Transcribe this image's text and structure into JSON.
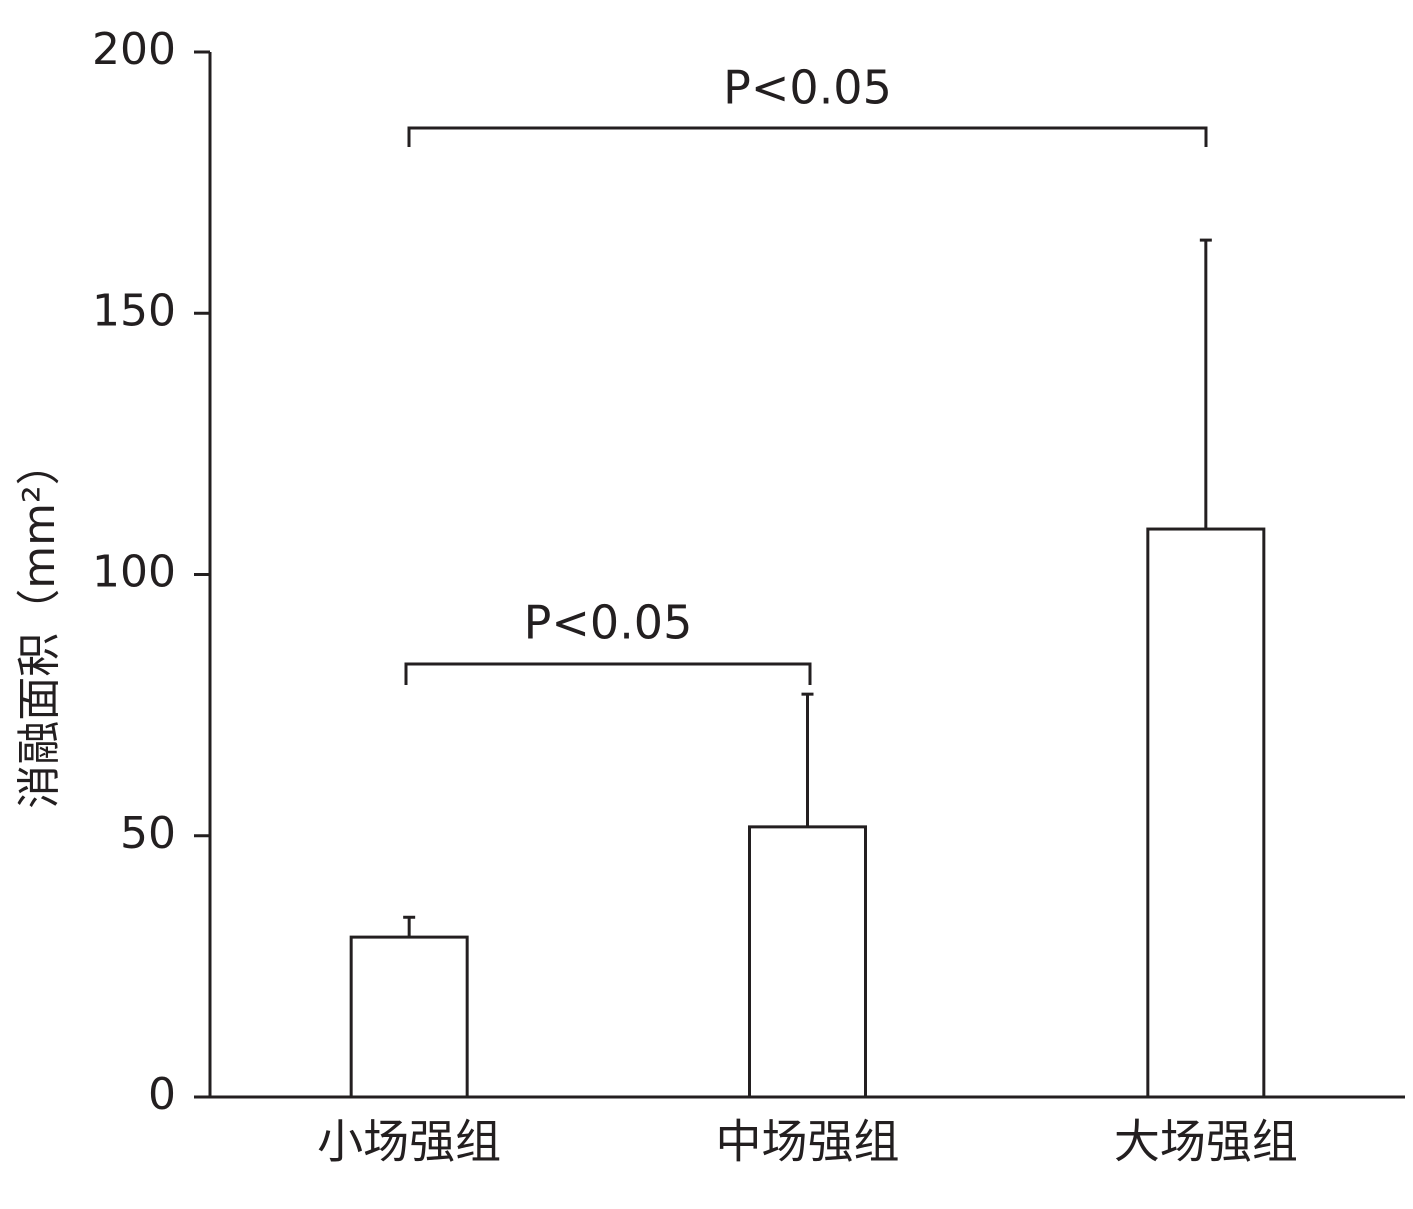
{
  "chart_data": {
    "type": "bar",
    "y_label": "消融面积（mm²）",
    "categories": [
      "小场强组",
      "中场强组",
      "大场强组"
    ],
    "values": [
      30.6,
      51.7,
      108.7
    ],
    "errors": [
      3.8,
      25.4,
      55.3
    ],
    "color": "#ffffff",
    "ylim": [
      0,
      200
    ],
    "yticks": [
      0,
      50,
      100,
      150,
      200
    ],
    "annotations": [
      "P<0.05",
      "P<0.05"
    ]
  }
}
